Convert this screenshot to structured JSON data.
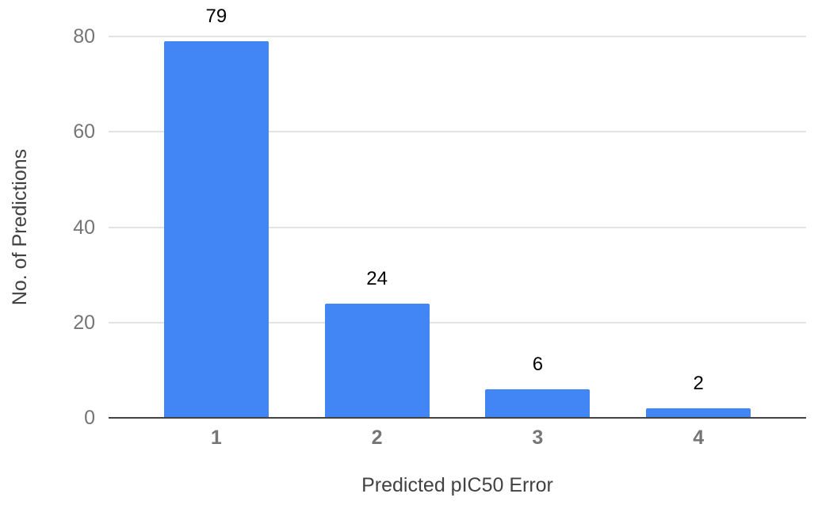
{
  "chart_data": {
    "type": "bar",
    "categories": [
      "1",
      "2",
      "3",
      "4"
    ],
    "values": [
      79,
      24,
      6,
      2
    ],
    "data_labels": [
      "79",
      "24",
      "6",
      "2"
    ],
    "title": "",
    "xlabel": "Predicted pIC50 Error",
    "ylabel": "No. of Predictions",
    "yticks": [
      "0",
      "20",
      "40",
      "60",
      "80"
    ],
    "ylim": [
      0,
      80
    ],
    "grid": true,
    "legend": "none",
    "colors": {
      "bar": "#4285F4",
      "gridline": "#E3E3E3",
      "axis_line": "#424242",
      "tick_label": "#757575",
      "category_label": "#757575",
      "axis_title": "#424242",
      "data_label": "#000000",
      "background": "#FFFFFF"
    }
  }
}
